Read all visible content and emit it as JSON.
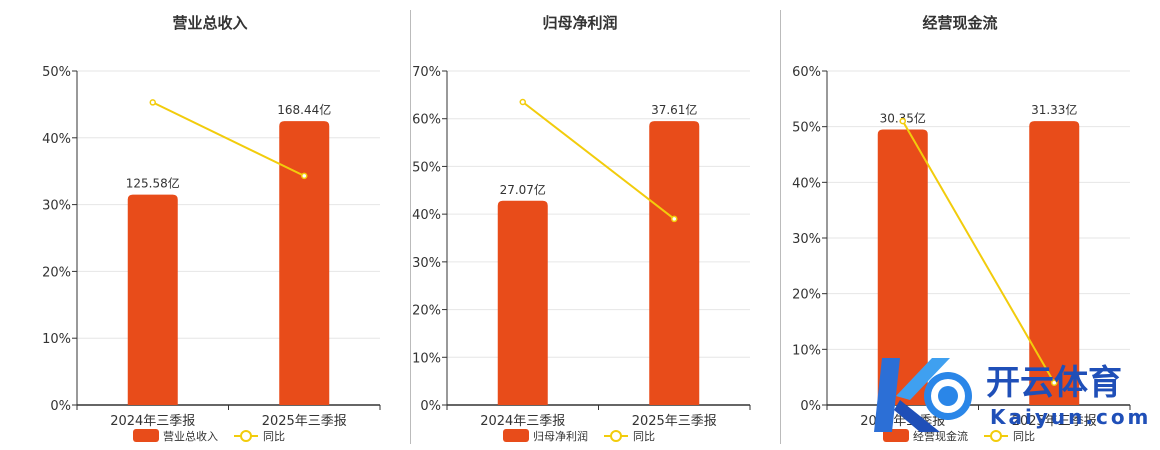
{
  "colors": {
    "bar": "#e84c1a",
    "line": "#f2cc0c",
    "grid": "#e6e6e6",
    "axis": "#333333"
  },
  "legend": {
    "line_label": "同比"
  },
  "watermark": {
    "brand_cn": "开云体育",
    "brand_en": "Kaiyun.com"
  },
  "chart_data": [
    {
      "type": "bar",
      "title": "营业总收入",
      "categories": [
        "2024年三季报",
        "2025年三季报"
      ],
      "series": [
        {
          "name": "营业总收入",
          "kind": "bar",
          "values": [
            31.5,
            42.5
          ],
          "labels": [
            "125.58亿",
            "168.44亿"
          ]
        },
        {
          "name": "同比",
          "kind": "line",
          "values": [
            45.3,
            34.3
          ]
        }
      ],
      "ylim": [
        0,
        50
      ],
      "yticks": [
        "0%",
        "10%",
        "20%",
        "30%",
        "40%",
        "50%"
      ],
      "legend": "bottom-center"
    },
    {
      "type": "bar",
      "title": "归母净利润",
      "categories": [
        "2024年三季报",
        "2025年三季报"
      ],
      "series": [
        {
          "name": "归母净利润",
          "kind": "bar",
          "values": [
            42.8,
            59.5
          ],
          "labels": [
            "27.07亿",
            "37.61亿"
          ]
        },
        {
          "name": "同比",
          "kind": "line",
          "values": [
            63.5,
            39.0
          ]
        }
      ],
      "ylim": [
        0,
        70
      ],
      "yticks": [
        "0%",
        "10%",
        "20%",
        "30%",
        "40%",
        "50%",
        "60%",
        "70%"
      ],
      "legend": "bottom-center"
    },
    {
      "type": "bar",
      "title": "经营现金流",
      "categories": [
        "2024年三季报",
        "2025年三季报"
      ],
      "series": [
        {
          "name": "经营现金流",
          "kind": "bar",
          "values": [
            49.5,
            51.0
          ],
          "labels": [
            "30.35亿",
            "31.33亿"
          ]
        },
        {
          "name": "同比",
          "kind": "line",
          "values": [
            51.0,
            4.0
          ]
        }
      ],
      "ylim": [
        0,
        60
      ],
      "yticks": [
        "0%",
        "10%",
        "20%",
        "30%",
        "40%",
        "50%",
        "60%"
      ],
      "legend": "bottom-center"
    }
  ]
}
